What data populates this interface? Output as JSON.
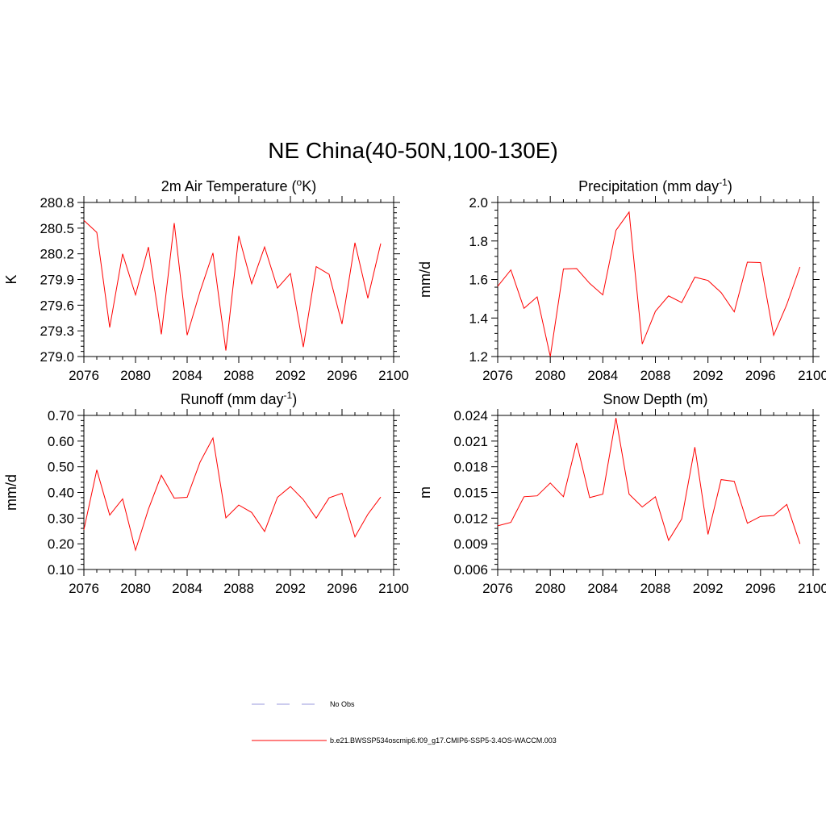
{
  "figure": {
    "title": "NE China(40-50N,100-130E)"
  },
  "chart_data": [
    {
      "type": "line",
      "title": "2m Air Temperature (",
      "title_sup": "o",
      "title_rest": "K)",
      "title_suffix": "",
      "ylabel": "K",
      "xlabel": "",
      "xlim": [
        2076,
        2100
      ],
      "ylim": [
        279.0,
        280.8
      ],
      "xticks": [
        2076,
        2080,
        2084,
        2088,
        2092,
        2096,
        2100
      ],
      "xtick_labels": [
        "2076",
        "2080",
        "2084",
        "2088",
        "2092",
        "2096",
        "2100"
      ],
      "yticks": [
        279.0,
        279.3,
        279.6,
        279.9,
        280.2,
        280.5,
        280.8
      ],
      "ytick_labels": [
        "279.0",
        "279.3",
        "279.6",
        "279.9",
        "280.2",
        "280.5",
        "280.8"
      ],
      "x": [
        2076,
        2077,
        2078,
        2079,
        2080,
        2081,
        2082,
        2083,
        2084,
        2085,
        2086,
        2087,
        2088,
        2089,
        2090,
        2091,
        2092,
        2093,
        2094,
        2095,
        2096,
        2097,
        2098,
        2099
      ],
      "series": [
        {
          "name": "b.e21.BWSSP534oscmip6.f09_g17.CMIP6-SSP5-3.4OS-WACCM.003",
          "values": [
            280.59,
            280.45,
            279.34,
            280.2,
            279.72,
            280.28,
            279.26,
            280.56,
            279.25,
            279.76,
            280.21,
            279.07,
            280.41,
            279.85,
            280.28,
            279.8,
            279.97,
            279.11,
            280.05,
            279.96,
            279.38,
            280.33,
            279.68,
            280.32
          ]
        }
      ]
    },
    {
      "type": "line",
      "title": "Precipitation (mm day",
      "title_sup": "-1",
      "title_rest": ")",
      "ylabel": "mm/d",
      "xlabel": "",
      "xlim": [
        2076,
        2100
      ],
      "ylim": [
        1.2,
        2.0
      ],
      "xticks": [
        2076,
        2080,
        2084,
        2088,
        2092,
        2096,
        2100
      ],
      "xtick_labels": [
        "2076",
        "2080",
        "2084",
        "2088",
        "2092",
        "2096",
        "2100"
      ],
      "yticks": [
        1.2,
        1.4,
        1.6,
        1.8,
        2.0
      ],
      "ytick_labels": [
        "1.2",
        "1.4",
        "1.6",
        "1.8",
        "2.0"
      ],
      "x": [
        2076,
        2077,
        2078,
        2079,
        2080,
        2081,
        2082,
        2083,
        2084,
        2085,
        2086,
        2087,
        2088,
        2089,
        2090,
        2091,
        2092,
        2093,
        2094,
        2095,
        2096,
        2097,
        2098,
        2099
      ],
      "series": [
        {
          "name": "b.e21.BWSSP534oscmip6.f09_g17.CMIP6-SSP5-3.4OS-WACCM.003",
          "values": [
            1.565,
            1.65,
            1.45,
            1.51,
            1.2,
            1.655,
            1.657,
            1.58,
            1.52,
            1.855,
            1.95,
            1.265,
            1.435,
            1.515,
            1.48,
            1.612,
            1.595,
            1.532,
            1.432,
            1.69,
            1.688,
            1.31,
            1.47,
            1.665
          ]
        }
      ]
    },
    {
      "type": "line",
      "title": "Runoff (mm day",
      "title_sup": "-1",
      "title_rest": ")",
      "ylabel": "mm/d",
      "xlabel": "",
      "xlim": [
        2076,
        2100
      ],
      "ylim": [
        0.1,
        0.7
      ],
      "xticks": [
        2076,
        2080,
        2084,
        2088,
        2092,
        2096,
        2100
      ],
      "xtick_labels": [
        "2076",
        "2080",
        "2084",
        "2088",
        "2092",
        "2096",
        "2100"
      ],
      "yticks": [
        0.1,
        0.2,
        0.3,
        0.4,
        0.5,
        0.6,
        0.7
      ],
      "ytick_labels": [
        "0.10",
        "0.20",
        "0.30",
        "0.40",
        "0.50",
        "0.60",
        "0.70"
      ],
      "x": [
        2076,
        2077,
        2078,
        2079,
        2080,
        2081,
        2082,
        2083,
        2084,
        2085,
        2086,
        2087,
        2088,
        2089,
        2090,
        2091,
        2092,
        2093,
        2094,
        2095,
        2096,
        2097,
        2098,
        2099
      ],
      "series": [
        {
          "name": "b.e21.BWSSP534oscmip6.f09_g17.CMIP6-SSP5-3.4OS-WACCM.003",
          "values": [
            0.255,
            0.488,
            0.312,
            0.375,
            0.175,
            0.335,
            0.467,
            0.378,
            0.381,
            0.518,
            0.612,
            0.301,
            0.351,
            0.322,
            0.248,
            0.381,
            0.423,
            0.372,
            0.3,
            0.379,
            0.397,
            0.227,
            0.315,
            0.382
          ]
        }
      ]
    },
    {
      "type": "line",
      "title": "Snow Depth (m)",
      "title_sup": "",
      "title_rest": "",
      "ylabel": "m",
      "xlabel": "",
      "xlim": [
        2076,
        2100
      ],
      "ylim": [
        0.006,
        0.024
      ],
      "xticks": [
        2076,
        2080,
        2084,
        2088,
        2092,
        2096,
        2100
      ],
      "xtick_labels": [
        "2076",
        "2080",
        "2084",
        "2088",
        "2092",
        "2096",
        "2100"
      ],
      "yticks": [
        0.006,
        0.009,
        0.012,
        0.015,
        0.018,
        0.021,
        0.024
      ],
      "ytick_labels": [
        "0.006",
        "0.009",
        "0.012",
        "0.015",
        "0.018",
        "0.021",
        "0.024"
      ],
      "x": [
        2076,
        2077,
        2078,
        2079,
        2080,
        2081,
        2082,
        2083,
        2084,
        2085,
        2086,
        2087,
        2088,
        2089,
        2090,
        2091,
        2092,
        2093,
        2094,
        2095,
        2096,
        2097,
        2098,
        2099
      ],
      "series": [
        {
          "name": "b.e21.BWSSP534oscmip6.f09_g17.CMIP6-SSP5-3.4OS-WACCM.003",
          "values": [
            0.0111,
            0.0115,
            0.0145,
            0.0146,
            0.0161,
            0.0145,
            0.0208,
            0.0144,
            0.0148,
            0.0237,
            0.0148,
            0.0133,
            0.0145,
            0.0094,
            0.0119,
            0.0203,
            0.0101,
            0.0165,
            0.0163,
            0.0114,
            0.0122,
            0.0123,
            0.0136,
            0.009
          ]
        }
      ]
    }
  ],
  "legend": {
    "items": [
      {
        "label": "No Obs",
        "color": "#9999dd",
        "style": "dashed"
      },
      {
        "label": "b.e21.BWSSP534oscmip6.f09_g17.CMIP6-SSP5-3.4OS-WACCM.003",
        "color": "#ff0000",
        "style": "solid"
      }
    ]
  }
}
